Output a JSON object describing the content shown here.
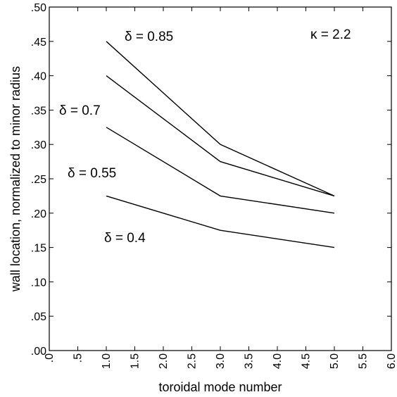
{
  "chart_data": {
    "type": "line",
    "title": "",
    "xlabel": "toroidal mode number",
    "ylabel": "wall location, normalized to minor radius",
    "xlim": [
      0,
      6
    ],
    "ylim": [
      0,
      0.5
    ],
    "grid": false,
    "x": [
      1,
      3,
      5
    ],
    "x_tick_values": [
      0,
      0.5,
      1,
      1.5,
      2,
      2.5,
      3,
      3.5,
      4,
      4.5,
      5,
      5.5,
      6
    ],
    "x_tick_labels": [
      ".0",
      ".5",
      "1.0",
      "1.5",
      "2.0",
      "2.5",
      "3.0",
      "3.5",
      "4.0",
      "4.5",
      "5.0",
      "5.5",
      "6.0"
    ],
    "y_tick_values": [
      0,
      0.05,
      0.1,
      0.15,
      0.2,
      0.25,
      0.3,
      0.35,
      0.4,
      0.45,
      0.5
    ],
    "y_tick_labels": [
      ".00",
      ".05",
      ".10",
      ".15",
      ".20",
      ".25",
      ".30",
      ".35",
      ".40",
      ".45",
      ".50"
    ],
    "series": [
      {
        "name": "δ = 0.85",
        "values": [
          0.45,
          0.3,
          0.225
        ]
      },
      {
        "name": "δ = 0.7",
        "values": [
          0.4,
          0.275,
          0.225
        ]
      },
      {
        "name": "δ = 0.55",
        "values": [
          0.325,
          0.225,
          0.2
        ]
      },
      {
        "name": "δ = 0.4",
        "values": [
          0.225,
          0.175,
          0.15
        ]
      }
    ],
    "annotations": [
      {
        "text": "κ = 2.2"
      }
    ],
    "line_color": "#000000"
  }
}
